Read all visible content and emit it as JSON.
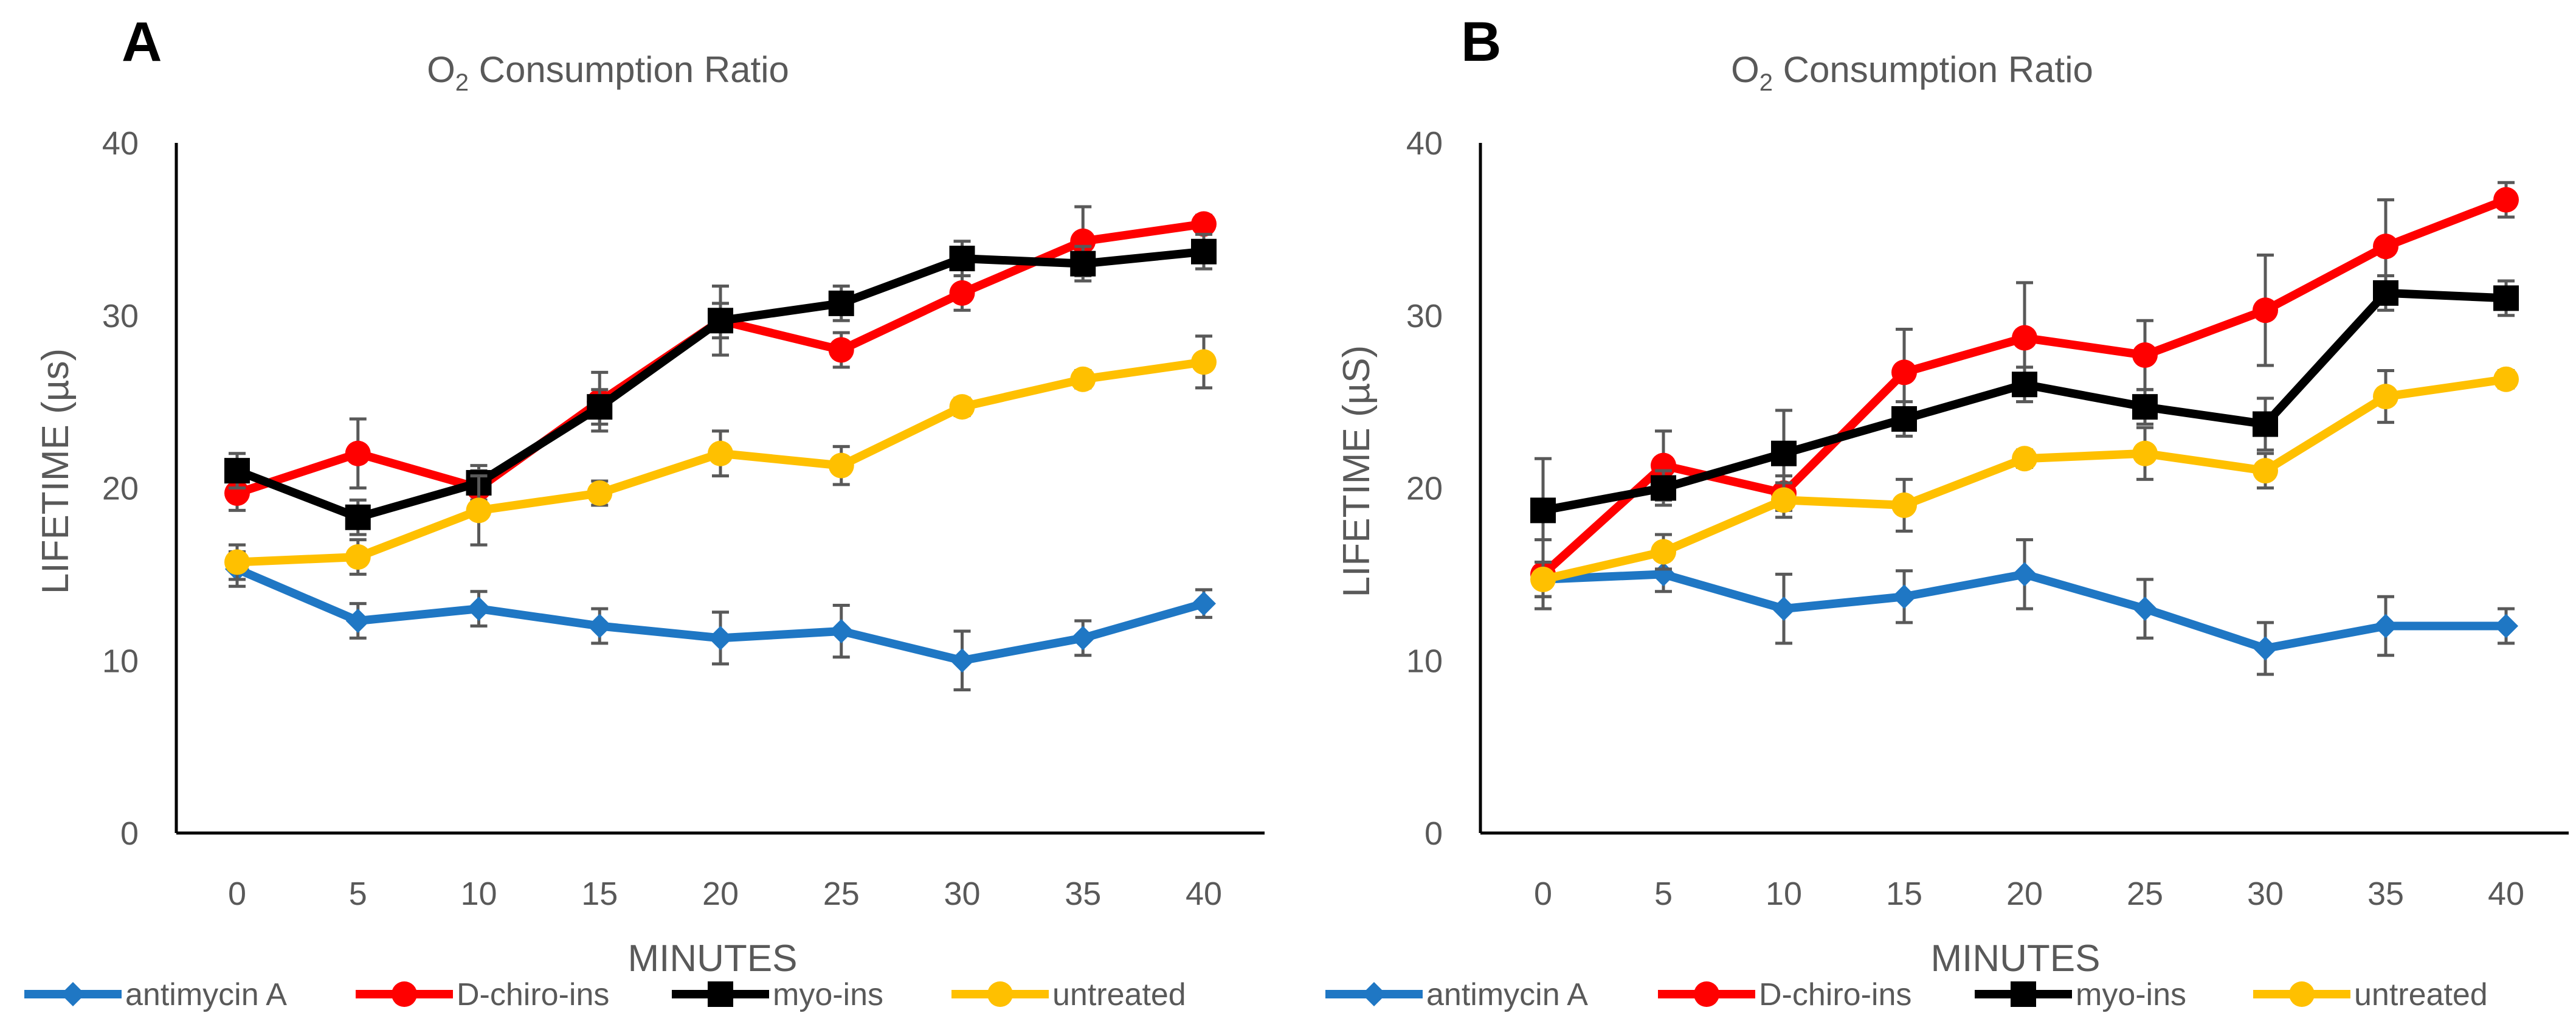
{
  "chart_data": [
    {
      "panel": "A",
      "type": "line",
      "title": "O2 Consumption Ratio",
      "title_main": "O",
      "title_sub": "2",
      "title_rest": " Consumption Ratio",
      "xlabel": "MINUTES",
      "ylabel": "LIFETIME (µs)",
      "x": [
        0,
        5,
        10,
        15,
        20,
        25,
        30,
        35,
        40
      ],
      "ylim": [
        0,
        40
      ],
      "yticks": [
        0,
        10,
        20,
        30,
        40
      ],
      "legend": "bottom",
      "series": [
        {
          "name": "antimycin A",
          "color": "#1f77c4",
          "marker": "diamond",
          "values": [
            15.3,
            12.3,
            13.0,
            12.0,
            11.3,
            11.7,
            10.0,
            11.3,
            13.3
          ],
          "errors": [
            1.0,
            1.0,
            1.0,
            1.0,
            1.5,
            1.5,
            1.7,
            1.0,
            0.8
          ]
        },
        {
          "name": "D-chiro-ins",
          "color": "#ff0000",
          "marker": "circle",
          "values": [
            19.7,
            22.0,
            20.0,
            25.0,
            29.7,
            28.0,
            31.3,
            34.3,
            35.3
          ],
          "errors": [
            1.0,
            2.0,
            1.0,
            1.7,
            1.0,
            1.0,
            1.0,
            2.0,
            0.5
          ]
        },
        {
          "name": "myo-ins",
          "color": "#000000",
          "marker": "square",
          "values": [
            21.0,
            18.3,
            20.3,
            24.7,
            29.7,
            30.7,
            33.3,
            33.0,
            33.7
          ],
          "errors": [
            1.0,
            1.0,
            1.0,
            1.0,
            2.0,
            1.0,
            1.0,
            1.0,
            1.0
          ]
        },
        {
          "name": "untreated",
          "color": "#ffc000",
          "marker": "circle",
          "values": [
            15.7,
            16.0,
            18.7,
            19.7,
            22.0,
            21.3,
            24.7,
            26.3,
            27.3
          ],
          "errors": [
            1.0,
            1.0,
            2.0,
            0.7,
            1.3,
            1.1,
            0.5,
            0.5,
            1.5
          ]
        }
      ]
    },
    {
      "panel": "B",
      "type": "line",
      "title": "O2 Consumption Ratio",
      "title_main": "O",
      "title_sub": "2",
      "title_rest": " Consumption Ratio",
      "xlabel": "MINUTES",
      "ylabel": "LIFETIME (µS)",
      "x": [
        0,
        5,
        10,
        15,
        20,
        25,
        30,
        35,
        40
      ],
      "ylim": [
        0,
        40
      ],
      "yticks": [
        0,
        10,
        20,
        30,
        40
      ],
      "legend": "bottom",
      "series": [
        {
          "name": "antimycin A",
          "color": "#1f77c4",
          "marker": "diamond",
          "values": [
            14.7,
            15.0,
            13.0,
            13.7,
            15.0,
            13.0,
            10.7,
            12.0,
            12.0
          ],
          "errors": [
            1.0,
            1.0,
            2.0,
            1.5,
            2.0,
            1.7,
            1.5,
            1.7,
            1.0
          ]
        },
        {
          "name": "D-chiro-ins",
          "color": "#ff0000",
          "marker": "circle",
          "values": [
            15.0,
            21.3,
            19.7,
            26.7,
            28.7,
            27.7,
            30.3,
            34.0,
            36.7
          ],
          "errors": [
            2.0,
            2.0,
            1.0,
            2.5,
            3.2,
            2.0,
            3.2,
            2.7,
            1.0
          ]
        },
        {
          "name": "myo-ins",
          "color": "#000000",
          "marker": "square",
          "values": [
            18.7,
            20.0,
            22.0,
            24.0,
            26.0,
            24.7,
            23.7,
            31.3,
            31.0
          ],
          "errors": [
            3.0,
            1.0,
            2.5,
            1.0,
            1.0,
            1.0,
            1.5,
            1.0,
            1.0
          ]
        },
        {
          "name": "untreated",
          "color": "#ffc000",
          "marker": "circle",
          "values": [
            14.7,
            16.3,
            19.3,
            19.0,
            21.7,
            22.0,
            21.0,
            25.3,
            26.3
          ],
          "errors": [
            1.0,
            1.0,
            1.0,
            1.5,
            0.5,
            1.5,
            1.0,
            1.5,
            0.5
          ]
        }
      ]
    }
  ]
}
